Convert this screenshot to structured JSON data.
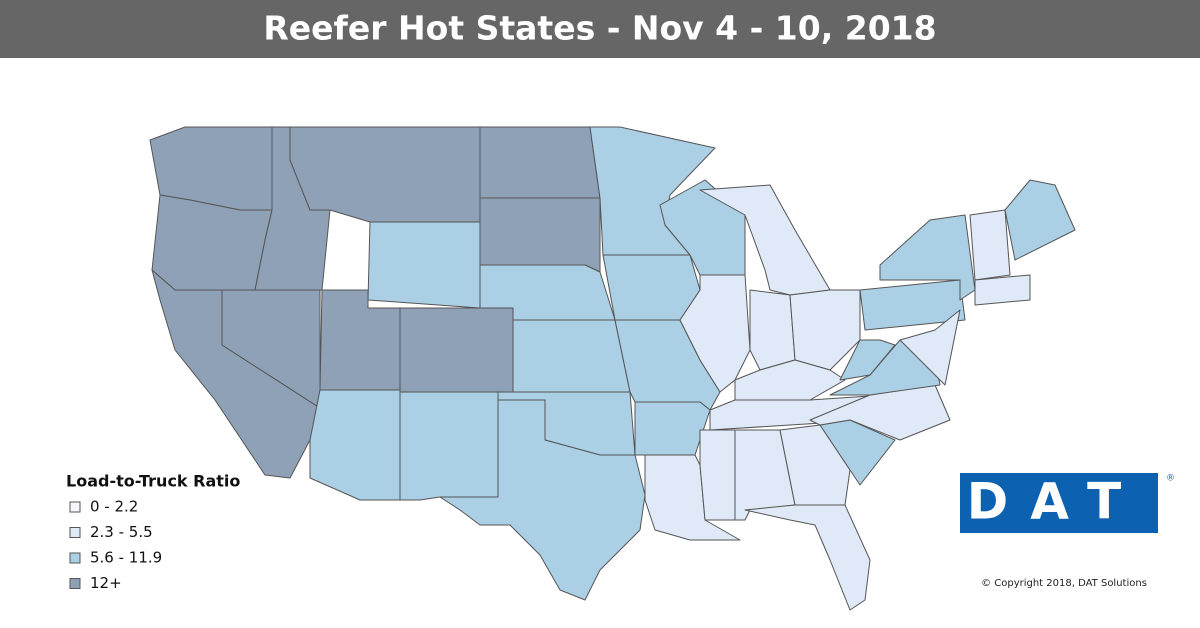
{
  "header": {
    "title": "Reefer Hot States - Nov 4 - 10, 2018"
  },
  "legend": {
    "title": "Load-to-Truck Ratio",
    "items": [
      {
        "label": "0 - 2.2",
        "color": "#f4f7fb"
      },
      {
        "label": "2.3 - 5.5",
        "color": "#dfe9f7"
      },
      {
        "label": "5.6 - 11.9",
        "color": "#abcfe5"
      },
      {
        "label": "12+",
        "color": "#8fa1b6"
      }
    ]
  },
  "logo": {
    "text": "DAT",
    "mark": "®"
  },
  "copyright": "© Copyright 2018, DAT Solutions"
}
